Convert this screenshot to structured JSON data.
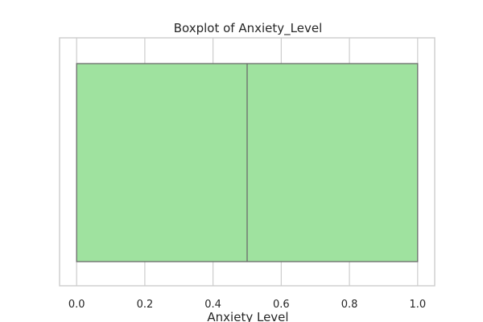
{
  "chart_data": {
    "type": "boxplot",
    "title": "Boxplot of Anxiety_Level",
    "xlabel": "Anxiety Level",
    "ylabel": "",
    "xlim": [
      -0.05,
      1.05
    ],
    "xticks": [
      0.0,
      0.2,
      0.4,
      0.6,
      0.8,
      1.0
    ],
    "tick_labels": [
      "0.0",
      "0.2",
      "0.4",
      "0.6",
      "0.8",
      "1.0"
    ],
    "grid": true,
    "orientation": "horizontal",
    "box": {
      "min": 0.0,
      "q1": 0.0,
      "median": 0.5,
      "q3": 1.0,
      "max": 1.0
    },
    "colors": {
      "box_fill": "#9fe29f",
      "box_edge": "#6b6b6b",
      "grid": "#cccccc",
      "spine": "#cccccc",
      "text": "#262626"
    }
  }
}
